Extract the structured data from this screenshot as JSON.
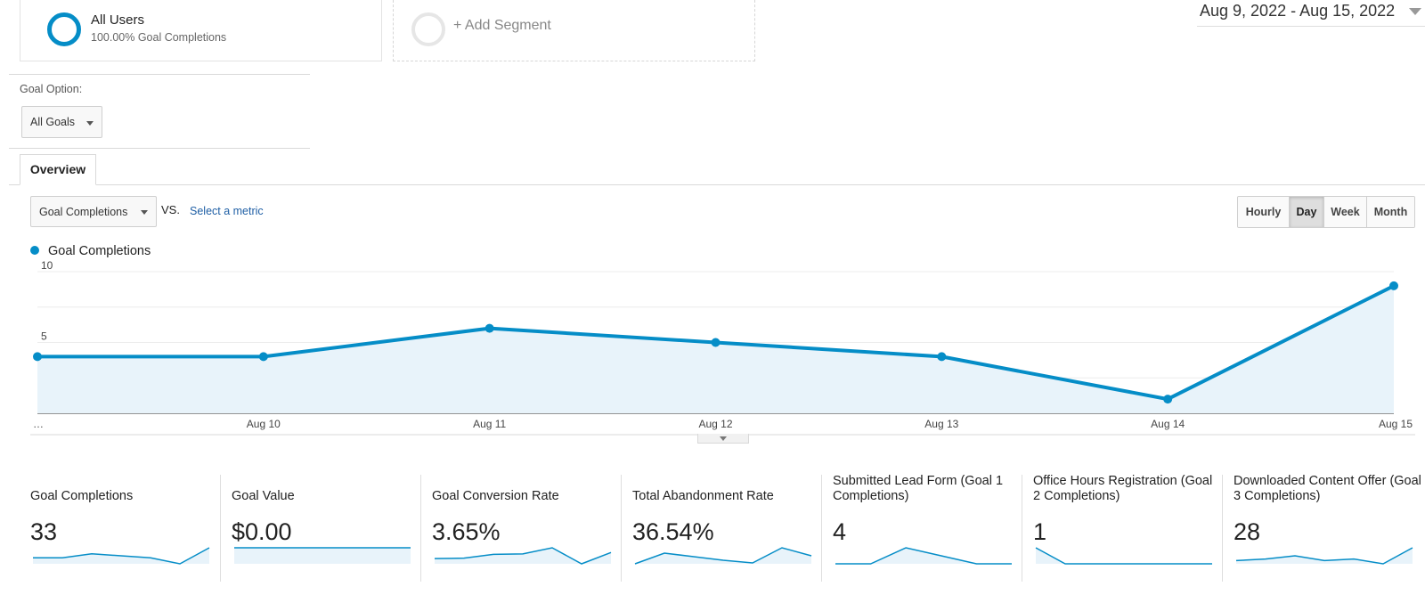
{
  "segments": {
    "all_users": {
      "name": "All Users",
      "subtitle": "100.00% Goal Completions"
    },
    "add_label": "+ Add Segment"
  },
  "date_range": "Aug 9, 2022 - Aug 15, 2022",
  "goal_option": {
    "label": "Goal Option:",
    "selected": "All Goals"
  },
  "tabs": {
    "overview": "Overview"
  },
  "metric_picker": {
    "primary": "Goal Completions",
    "vs_label": "VS.",
    "select_link": "Select a metric"
  },
  "time_toggle": [
    {
      "label": "Hourly",
      "active": false
    },
    {
      "label": "Day",
      "active": true
    },
    {
      "label": "Week",
      "active": false
    },
    {
      "label": "Month",
      "active": false
    }
  ],
  "colors": {
    "accent": "#058dc7",
    "area_fill": "#e8f3fa"
  },
  "chart_data": {
    "type": "line",
    "x": [
      "…",
      "Aug 10",
      "Aug 11",
      "Aug 12",
      "Aug 13",
      "Aug 14",
      "Aug 15"
    ],
    "series": [
      {
        "name": "Goal Completions",
        "values": [
          4,
          4,
          6,
          5,
          4,
          1,
          9
        ]
      }
    ],
    "y_ticks": [
      "10",
      "5"
    ],
    "y_tick_values": [
      10,
      5
    ],
    "ylim": [
      0,
      10
    ],
    "area": true,
    "grid": true,
    "legend": "top-left"
  },
  "scorecards": [
    {
      "title": "Goal Completions",
      "value": "33",
      "spark": [
        4,
        4,
        6,
        5,
        4,
        1,
        9
      ]
    },
    {
      "title": "Goal Value",
      "value": "$0.00",
      "spark": [
        0,
        0,
        0,
        0,
        0,
        0,
        0
      ]
    },
    {
      "title": "Goal Conversion Rate",
      "value": "3.65%",
      "spark": [
        3.0,
        3.1,
        3.9,
        4.0,
        5.3,
        1.9,
        4.3
      ]
    },
    {
      "title": "Total Abandonment Rate",
      "value": "36.54%",
      "spark": [
        31,
        43,
        39,
        35,
        32,
        49,
        40
      ]
    },
    {
      "title": "Submitted Lead Form (Goal 1 Completions)",
      "value": "4",
      "spark": [
        0,
        0,
        2,
        1,
        0,
        0
      ]
    },
    {
      "title": "Office Hours Registration (Goal 2 Completions)",
      "value": "1",
      "spark": [
        1,
        0,
        0,
        0,
        0,
        0,
        0
      ]
    },
    {
      "title": "Downloaded Content Offer (Goal 3 Completions)",
      "value": "28",
      "spark": [
        4,
        4.5,
        5.5,
        4,
        4.5,
        3,
        8
      ]
    }
  ]
}
